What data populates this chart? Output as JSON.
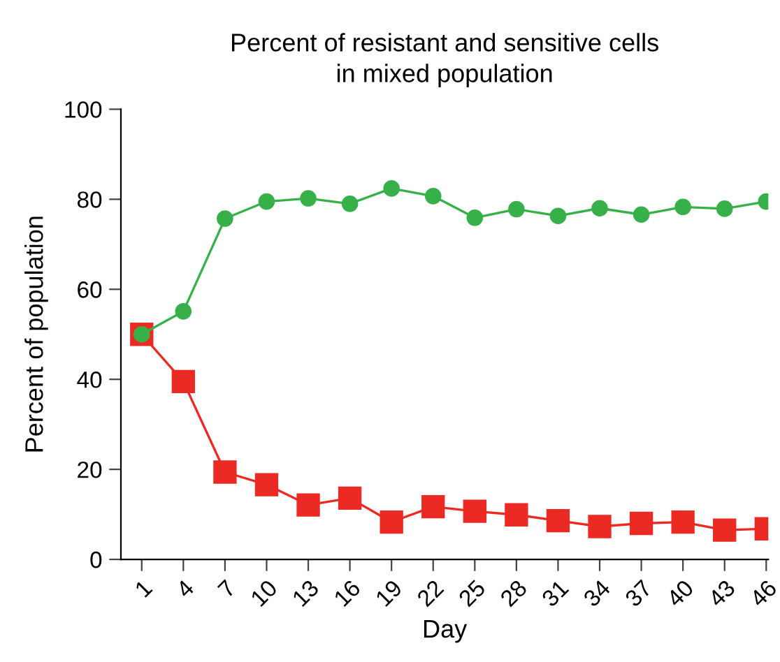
{
  "chart_data": {
    "type": "line",
    "title": "Percent of resistant and sensitive cells\nin mixed population",
    "xlabel": "Day",
    "ylabel": "Percent of population",
    "categories": [
      "1",
      "4",
      "7",
      "10",
      "13",
      "16",
      "19",
      "22",
      "25",
      "28",
      "31",
      "34",
      "37",
      "40",
      "43",
      "46"
    ],
    "series": [
      {
        "color": "#38b04a",
        "marker": "circle",
        "values": [
          50,
          55.1,
          75.7,
          79.5,
          80.2,
          79,
          82.4,
          80.7,
          75.9,
          77.8,
          76.3,
          78,
          76.6,
          78.3,
          77.9,
          79.5
        ]
      },
      {
        "color": "#ec2a24",
        "marker": "square",
        "values": [
          50,
          39.5,
          19.4,
          16.6,
          12.1,
          13.6,
          8.3,
          11.7,
          10.7,
          9.9,
          8.6,
          7.3,
          8.0,
          8.3,
          6.5,
          6.8
        ]
      }
    ],
    "ylim": [
      0,
      100
    ],
    "yticks": [
      0,
      20,
      40,
      60,
      80,
      100
    ],
    "grid": false,
    "legend": false
  }
}
